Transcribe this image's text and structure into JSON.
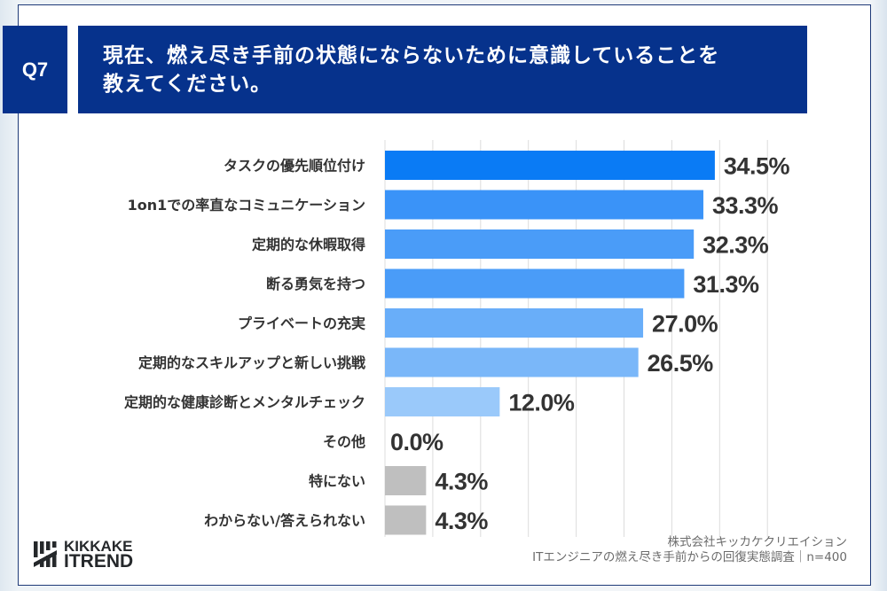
{
  "question": {
    "number": "Q7",
    "title_line1": "現在、燃え尽き手前の状態にならないために意識していることを",
    "title_line2": "教えてください。"
  },
  "colors": {
    "navy": "#06328c",
    "label_text": "#333333",
    "grid": "#dcdcdc",
    "gray_bar": "#bfbfbf"
  },
  "chart_data": {
    "type": "bar",
    "orientation": "horizontal",
    "title": "現在、燃え尽き手前の状態にならないために意識していることを教えてください。",
    "xlabel": "",
    "ylabel": "",
    "xlim": [
      0,
      40
    ],
    "grid": true,
    "grid_step": 5,
    "categories": [
      "タスクの優先順位付け",
      "1on1での率直なコミュニケーション",
      "定期的な休暇取得",
      "断る勇気を持つ",
      "プライベートの充実",
      "定期的なスキルアップと新しい挑戦",
      "定期的な健康診断とメンタルチェック",
      "その他",
      "特にない",
      "わからない/答えられない"
    ],
    "values": [
      34.5,
      33.3,
      32.3,
      31.3,
      27.0,
      26.5,
      12.0,
      0.0,
      4.3,
      4.3
    ],
    "value_labels": [
      "34.5%",
      "33.3%",
      "32.3%",
      "31.3%",
      "27.0%",
      "26.5%",
      "12.0%",
      "0.0%",
      "4.3%",
      "4.3%"
    ],
    "bar_colors": [
      "#0a7bf5",
      "#3a93f8",
      "#4a9cf8",
      "#4a9cf8",
      "#69aef9",
      "#7ab7f9",
      "#9ac9fa",
      "#9ac9fa",
      "#bfbfbf",
      "#bfbfbf"
    ]
  },
  "footer": {
    "company": "株式会社キッカケクリエイション",
    "survey": "ITエンジニアの燃え尽き手前からの回復実態調査｜n=400"
  },
  "logo": {
    "line1": "KIKKAKE",
    "line2": "ITREND"
  }
}
